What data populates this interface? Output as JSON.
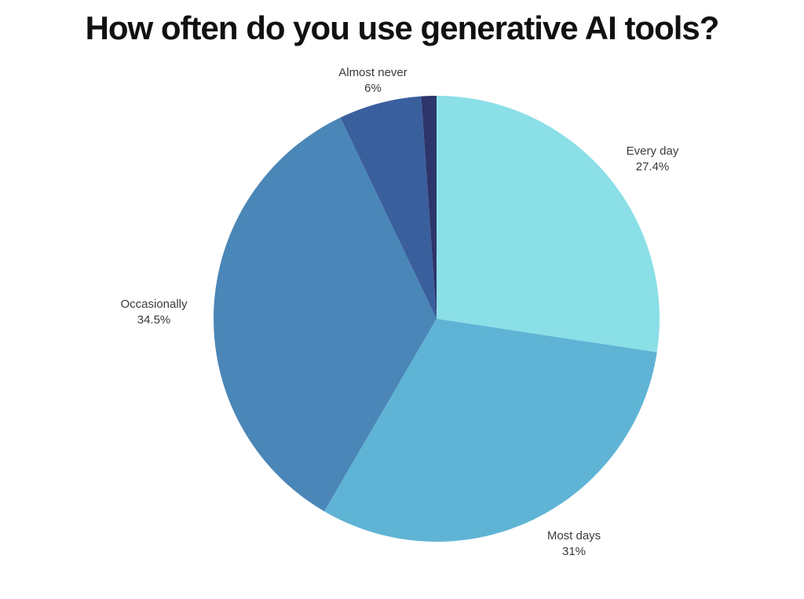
{
  "chart_data": {
    "type": "pie",
    "title": "How often do you use generative AI tools?",
    "start_angle_deg": 0,
    "direction": "clockwise",
    "legend": "none",
    "labels_position": "outside",
    "background": "#ffffff",
    "title_color": "#111111",
    "label_text_color": "#3a3a3a",
    "slices": [
      {
        "label": "Every day",
        "value": 27.4,
        "display": "27.4%",
        "color": "#8BDFE7"
      },
      {
        "label": "Most days",
        "value": 31,
        "display": "31%",
        "color": "#5FB4D5"
      },
      {
        "label": "Occasionally",
        "value": 34.5,
        "display": "34.5%",
        "color": "#4A86B7"
      },
      {
        "label": "Almost never",
        "value": 6,
        "display": "6%",
        "color": "#3A5F9D"
      },
      {
        "label": "",
        "value": 1.1,
        "display": "",
        "color": "#2E356B"
      }
    ]
  }
}
